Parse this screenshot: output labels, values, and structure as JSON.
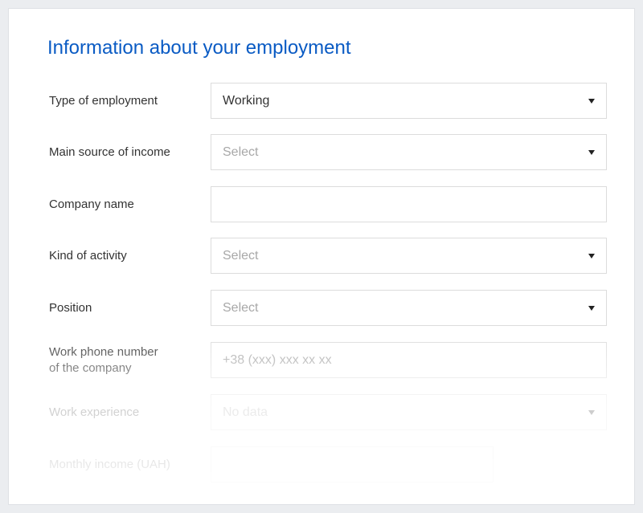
{
  "title": "Information about your employment",
  "fields": [
    {
      "label": "Type of employment",
      "value": "Working",
      "type": "select"
    },
    {
      "label": "Main source of income",
      "placeholder": "Select",
      "type": "select"
    },
    {
      "label": "Company name",
      "value": "",
      "type": "text"
    },
    {
      "label": "Kind of activity",
      "placeholder": "Select",
      "type": "select"
    },
    {
      "label": "Position",
      "placeholder": "Select",
      "type": "select"
    },
    {
      "label_line1": "Work phone number",
      "label_line2": "of the company",
      "placeholder": "+38 (xxx) xxx xx xx",
      "type": "text"
    },
    {
      "label": "Work experience",
      "placeholder": "No data",
      "type": "select"
    },
    {
      "label": "Monthly income (UAH)",
      "value": "",
      "type": "text"
    }
  ]
}
